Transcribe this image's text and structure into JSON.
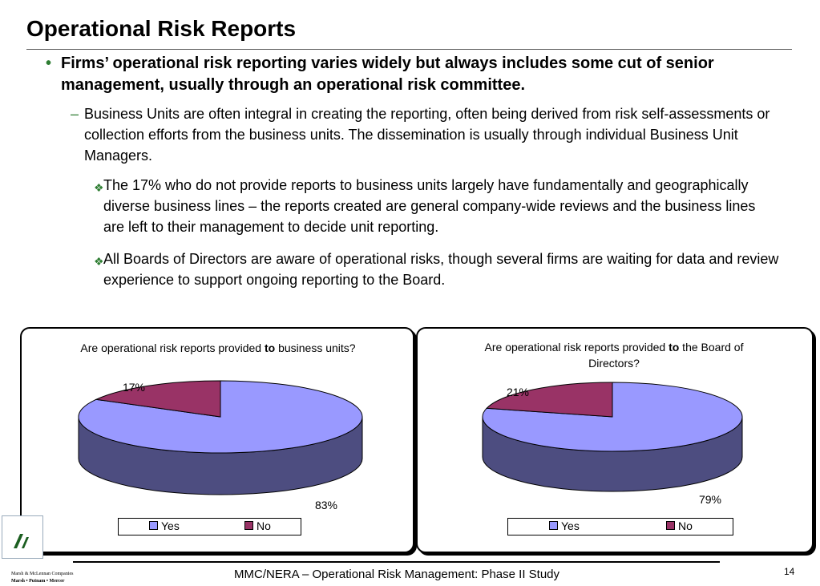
{
  "slide": {
    "title": "Operational Risk Reports",
    "bullet1": "Firms’ operational risk reporting varies widely but always includes some cut of senior management, usually through an operational risk committee.",
    "bullet1_marker": "•",
    "bullet2": "Business Units are often integral in creating the reporting, often being derived from risk self-assessments or collection efforts from the business units.  The dissemination is usually through individual Business Unit Managers.",
    "bullet2_marker": "–",
    "sub_bullets": [
      "The 17% who do not provide reports to business units largely have fundamentally and geographically diverse business lines – the reports created are general company-wide reviews and the business lines are left to their management to decide unit reporting.",
      "All Boards of Directors are aware of operational risks, though several firms are waiting for data and review experience to support ongoing reporting to the Board."
    ],
    "sub_bullet_marker": "❖"
  },
  "chart_data": [
    {
      "type": "pie",
      "title_before": "Are operational risk reports provided ",
      "title_bold": "to",
      "title_after": " business units?",
      "categories": [
        "Yes",
        "No"
      ],
      "values": [
        83,
        17
      ],
      "data_labels": [
        "83%",
        "17%"
      ],
      "colors": [
        "#9999ff",
        "#993366"
      ],
      "side_colors": [
        "#4d4d80",
        "#4d1a33"
      ],
      "legend": "bottom"
    },
    {
      "type": "pie",
      "title_before": "Are operational risk reports provided ",
      "title_bold": "to",
      "title_after": " the Board of Directors?",
      "categories": [
        "Yes",
        "No"
      ],
      "values": [
        79,
        21
      ],
      "data_labels": [
        "79%",
        "21%"
      ],
      "colors": [
        "#9999ff",
        "#993366"
      ],
      "side_colors": [
        "#4d4d80",
        "#4d1a33"
      ],
      "legend": "bottom"
    }
  ],
  "footer": {
    "text": "MMC/NERA – Operational Risk Management: Phase II Study",
    "page": "14",
    "logo_line1": "Marsh & McLennan Companies",
    "logo_line2": "Marsh • Putnam • Mercer"
  }
}
